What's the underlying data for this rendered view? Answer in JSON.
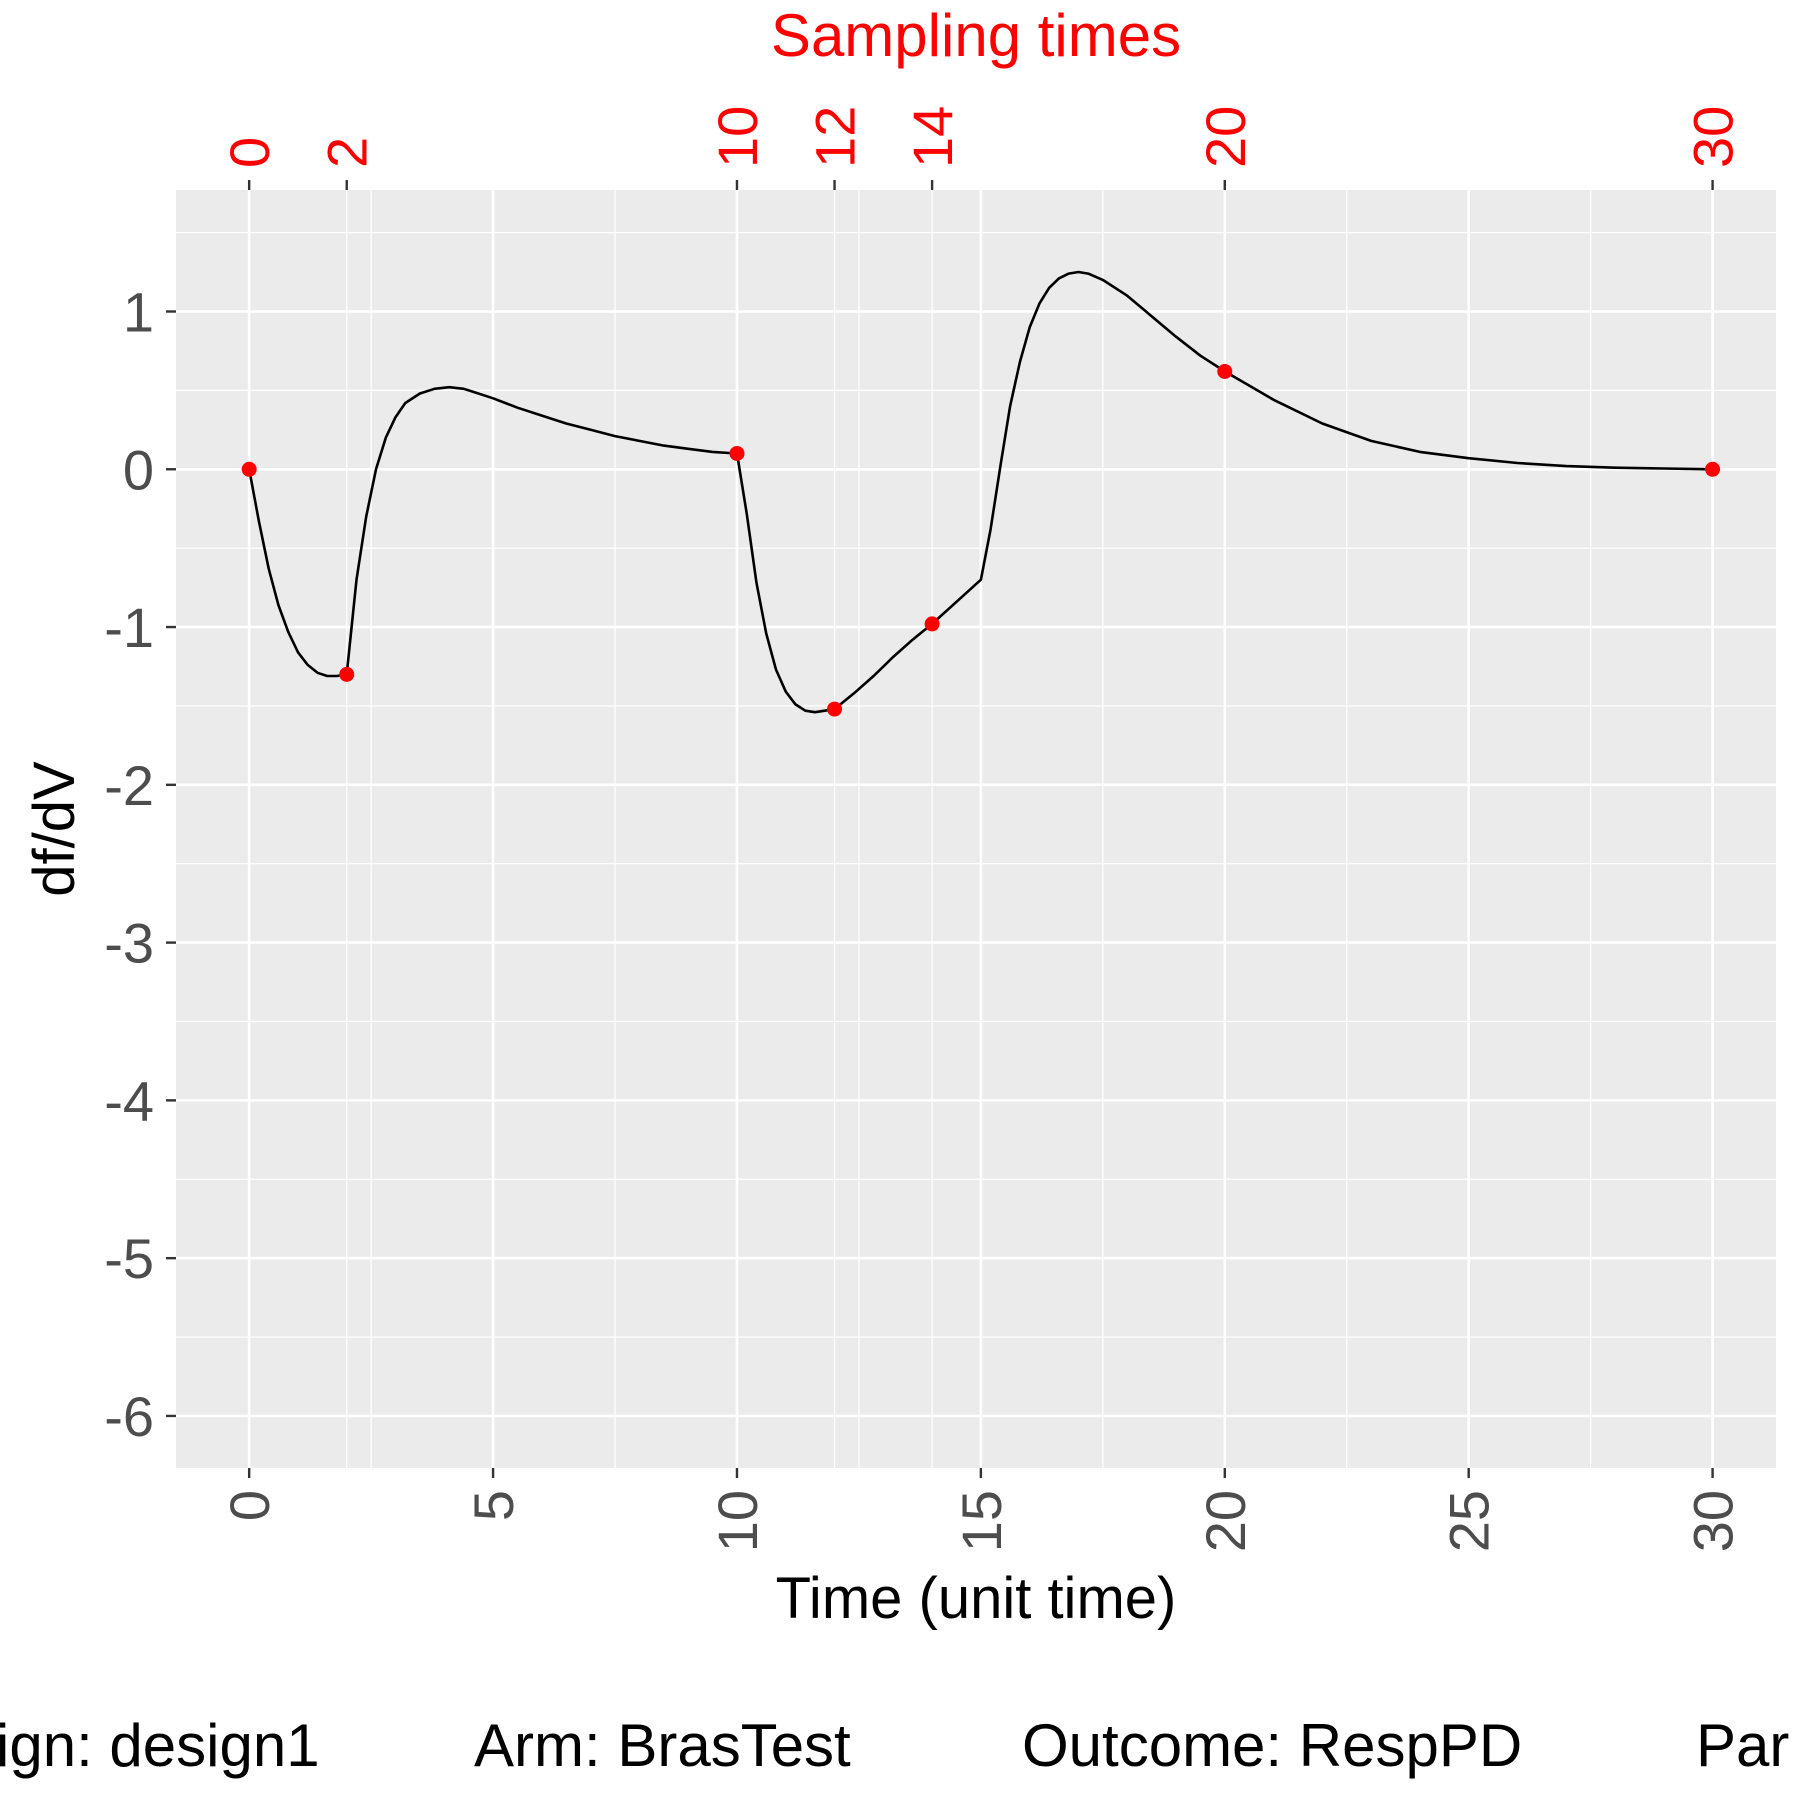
{
  "chart_data": {
    "type": "line",
    "title": "Sampling times",
    "xlabel": "Time (unit time)",
    "ylabel": "df/dV",
    "xlim": [
      -1.5,
      31.3
    ],
    "ylim": [
      -6.33,
      1.77
    ],
    "x_ticks": [
      0,
      5,
      10,
      15,
      20,
      25,
      30
    ],
    "x_tick_labels": [
      "0",
      "5",
      "10",
      "15",
      "20",
      "25",
      "30"
    ],
    "y_ticks": [
      1,
      0,
      -1,
      -2,
      -3,
      -4,
      -5,
      -6
    ],
    "y_tick_labels": [
      "1",
      "0",
      "-1",
      "-2",
      "-3",
      "-4",
      "-5",
      "-6"
    ],
    "top_ticks": [
      0,
      2,
      10,
      12,
      14,
      20,
      30
    ],
    "top_tick_labels": [
      "0",
      "2",
      "10",
      "12",
      "14",
      "20",
      "30"
    ],
    "grid": true,
    "series": [
      {
        "color": "#000000",
        "x": [
          0,
          0.2,
          0.4,
          0.6,
          0.8,
          1.0,
          1.2,
          1.4,
          1.6,
          1.8,
          2.0,
          2.2,
          2.4,
          2.6,
          2.8,
          3.0,
          3.2,
          3.5,
          3.8,
          4.1,
          4.4,
          4.7,
          5.0,
          5.5,
          6.0,
          6.5,
          7.0,
          7.5,
          8.0,
          8.5,
          9.0,
          9.5,
          10.0,
          10.2,
          10.4,
          10.6,
          10.8,
          11.0,
          11.2,
          11.4,
          11.6,
          11.8,
          12.0,
          12.4,
          12.8,
          13.2,
          13.6,
          14.0,
          14.5,
          15.0,
          15.2,
          15.4,
          15.6,
          15.8,
          16.0,
          16.2,
          16.4,
          16.6,
          16.8,
          17.0,
          17.2,
          17.5,
          18.0,
          18.5,
          19.0,
          19.5,
          20.0,
          21.0,
          22.0,
          23.0,
          24.0,
          25.0,
          26.0,
          27.0,
          28.0,
          29.0,
          30.0
        ],
        "y": [
          0,
          -0.33,
          -0.63,
          -0.86,
          -1.03,
          -1.16,
          -1.24,
          -1.29,
          -1.31,
          -1.31,
          -1.3,
          -0.7,
          -0.3,
          0.0,
          0.2,
          0.33,
          0.42,
          0.48,
          0.51,
          0.52,
          0.51,
          0.48,
          0.45,
          0.39,
          0.34,
          0.29,
          0.25,
          0.21,
          0.18,
          0.15,
          0.13,
          0.11,
          0.1,
          -0.28,
          -0.72,
          -1.04,
          -1.27,
          -1.41,
          -1.49,
          -1.53,
          -1.54,
          -1.53,
          -1.52,
          -1.42,
          -1.31,
          -1.19,
          -1.08,
          -0.98,
          -0.84,
          -0.7,
          -0.38,
          0.02,
          0.4,
          0.68,
          0.9,
          1.05,
          1.15,
          1.21,
          1.24,
          1.25,
          1.24,
          1.2,
          1.1,
          0.97,
          0.84,
          0.72,
          0.62,
          0.44,
          0.29,
          0.18,
          0.11,
          0.07,
          0.04,
          0.02,
          0.01,
          0.005,
          0.0
        ]
      },
      {
        "color": "#ff0000",
        "marker": "point",
        "x": [
          0,
          2,
          10,
          12,
          14,
          20,
          30
        ],
        "y": [
          0,
          -1.3,
          0.1,
          -1.52,
          -0.98,
          0.62,
          0.0
        ]
      }
    ]
  },
  "caption": {
    "design": "ign: design1",
    "arm": "Arm: BrasTest",
    "outcome": "Outcome: RespPD",
    "param": "Par"
  }
}
